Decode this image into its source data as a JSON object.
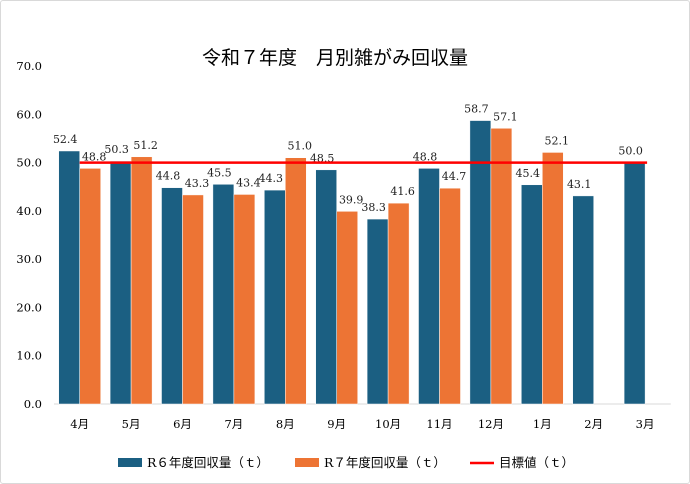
{
  "chart_data": {
    "type": "bar",
    "title": "令和７年度　月別雑がみ回収量",
    "categories": [
      "4月",
      "5月",
      "6月",
      "7月",
      "8月",
      "9月",
      "10月",
      "11月",
      "12月",
      "1月",
      "2月",
      "3月"
    ],
    "series": [
      {
        "name": "R６年度回収量（ｔ）",
        "color": "#1b5f82",
        "values": [
          52.4,
          50.3,
          44.8,
          45.5,
          44.3,
          48.5,
          38.3,
          48.8,
          58.7,
          45.4,
          43.1,
          50.0
        ]
      },
      {
        "name": "R７年度回収量（ｔ）",
        "color": "#ed7434",
        "values": [
          48.8,
          51.2,
          43.3,
          43.4,
          51.0,
          39.9,
          41.6,
          44.7,
          57.1,
          52.1,
          null,
          null
        ]
      }
    ],
    "target": {
      "name": "目標値（ｔ）",
      "color": "#ff0000",
      "value": 50
    },
    "ylim": [
      0,
      70
    ],
    "yticks": [
      "0.0",
      "10.0",
      "20.0",
      "30.0",
      "40.0",
      "50.0",
      "60.0",
      "70.0"
    ],
    "grid": false,
    "legend": "bottom"
  }
}
